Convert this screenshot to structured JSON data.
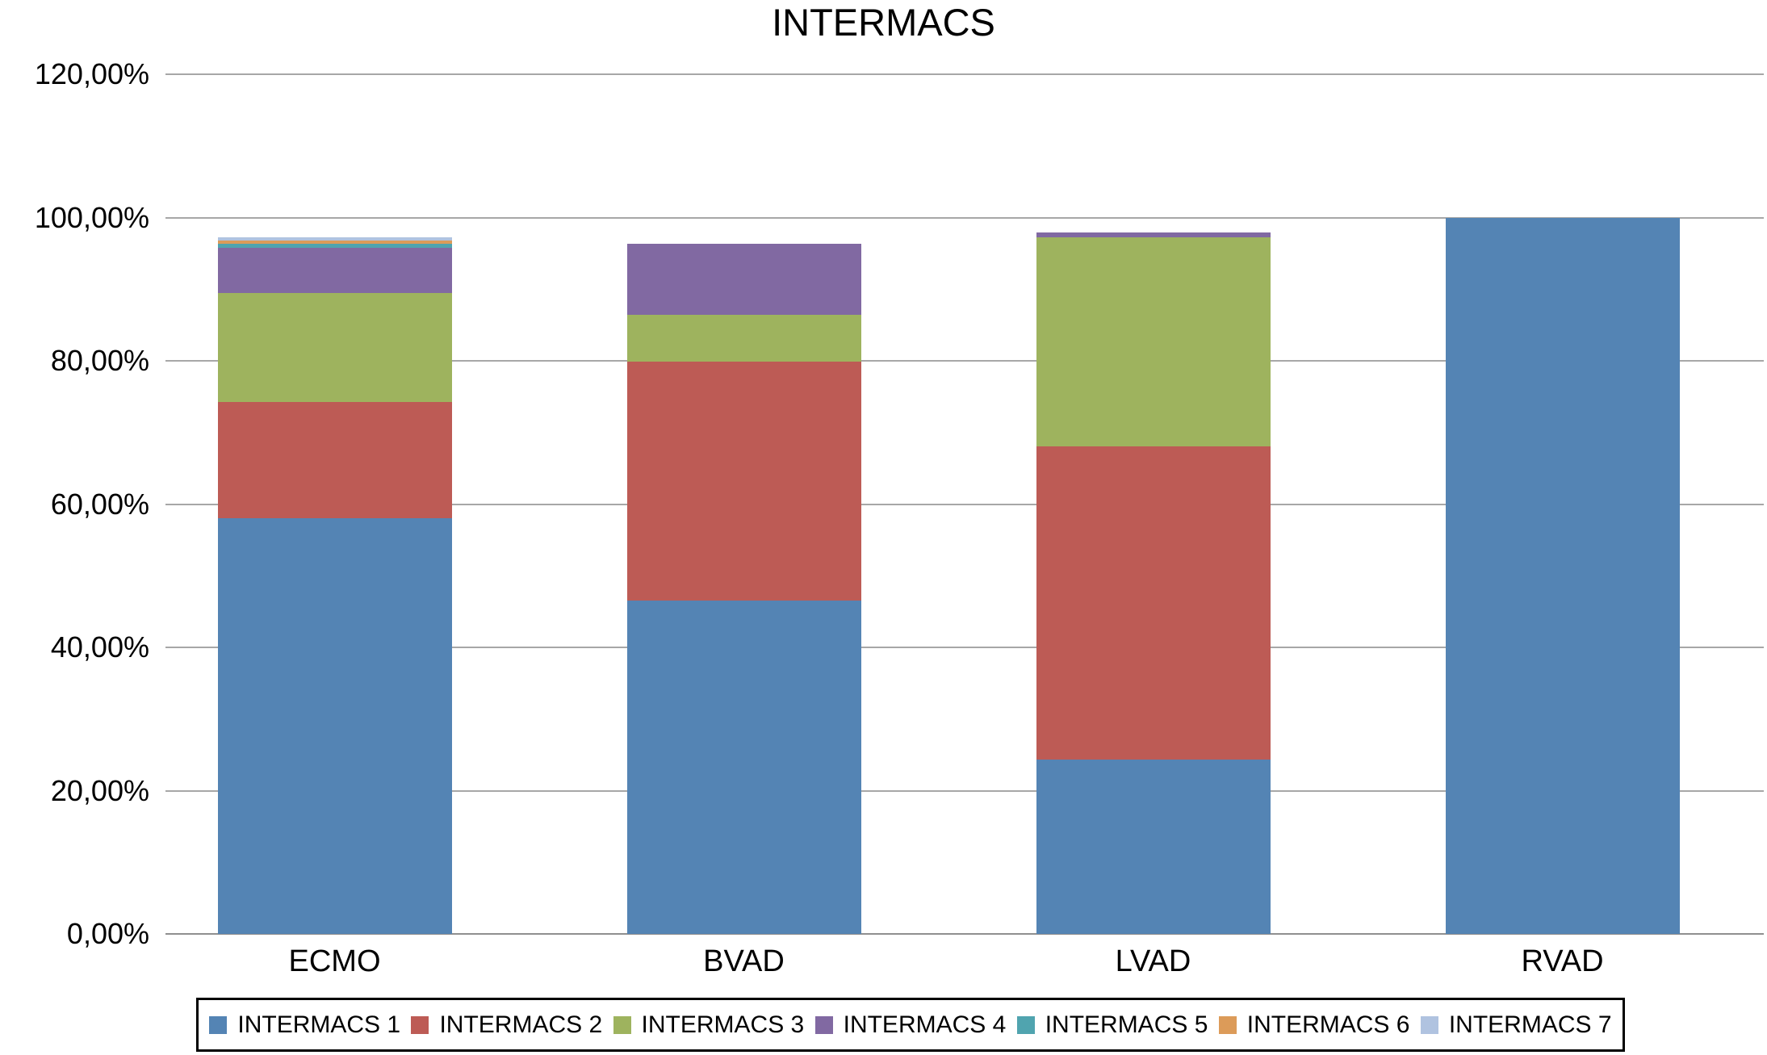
{
  "title": "INTERMACS",
  "chart_data": {
    "type": "bar",
    "stacked": true,
    "title": "INTERMACS",
    "xlabel": "",
    "ylabel": "",
    "categories": [
      "ECMO",
      "BVAD",
      "LVAD",
      "RVAD"
    ],
    "series": [
      {
        "name": "INTERMACS 1",
        "color": "#5484b4",
        "values": [
          58.0,
          46.5,
          24.3,
          100.0
        ]
      },
      {
        "name": "INTERMACS 2",
        "color": "#bd5b55",
        "values": [
          16.2,
          33.4,
          43.8,
          0
        ]
      },
      {
        "name": "INTERMACS 3",
        "color": "#9eb35e",
        "values": [
          15.3,
          6.5,
          29.1,
          0
        ]
      },
      {
        "name": "INTERMACS 4",
        "color": "#8169a2",
        "values": [
          6.3,
          9.9,
          0.7,
          0
        ]
      },
      {
        "name": "INTERMACS 5",
        "color": "#50a4af",
        "values": [
          0.5,
          0,
          0,
          0
        ]
      },
      {
        "name": "INTERMACS 6",
        "color": "#dc9b59",
        "values": [
          0.5,
          0,
          0,
          0
        ]
      },
      {
        "name": "INTERMACS 7",
        "color": "#b0c3e0",
        "values": [
          0.4,
          0,
          0,
          0
        ]
      }
    ],
    "ylim": [
      0,
      120
    ],
    "ytick_step": 20,
    "ytick_labels": [
      "0,00%",
      "20,00%",
      "40,00%",
      "60,00%",
      "80,00%",
      "100,00%",
      "120,00%"
    ],
    "grid": true,
    "gridline_color": "#a7a7a7",
    "legend_position": "bottom"
  }
}
